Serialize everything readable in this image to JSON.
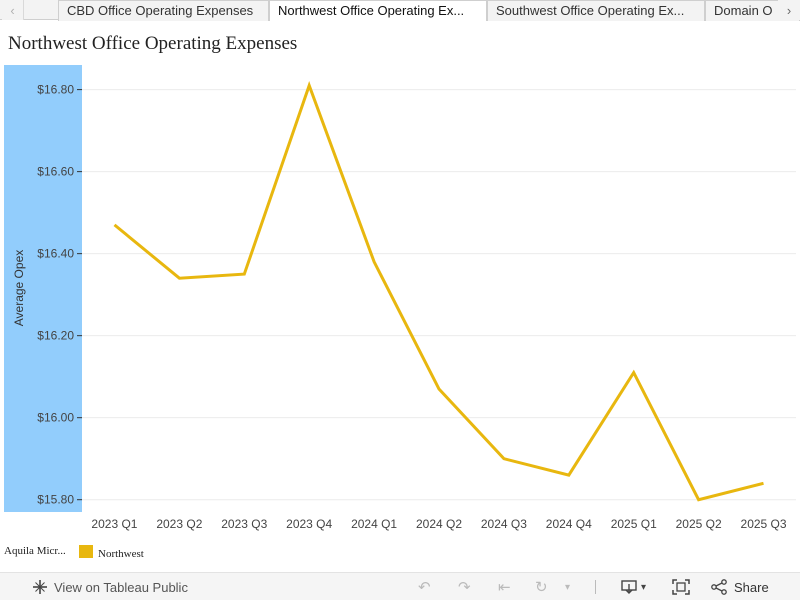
{
  "tabs": {
    "items": [
      {
        "label": "CBD Office Operating Expenses"
      },
      {
        "label": "Northwest Office Operating Ex..."
      },
      {
        "label": "Southwest Office Operating Ex..."
      },
      {
        "label": "Domain O"
      }
    ],
    "active_index": 1
  },
  "page": {
    "title": "Northwest Office Operating Expenses"
  },
  "legend": {
    "field": "Aquila Micr...",
    "items": [
      {
        "label": "Northwest",
        "color": "#e8b70f"
      }
    ]
  },
  "toolbar": {
    "view_label": "View on Tableau Public",
    "share_label": "Share"
  },
  "colors": {
    "line": "#e8b70f",
    "axis_band": "#92cdfc"
  },
  "chart_data": {
    "type": "line",
    "categories": [
      "2023 Q1",
      "2023 Q2",
      "2023 Q3",
      "2023 Q4",
      "2024 Q1",
      "2024 Q2",
      "2024 Q3",
      "2024 Q4",
      "2025 Q1",
      "2025 Q2",
      "2025 Q3"
    ],
    "series": [
      {
        "name": "Northwest",
        "values": [
          16.47,
          16.34,
          16.35,
          16.81,
          16.38,
          16.07,
          15.9,
          15.86,
          16.11,
          15.8,
          15.84
        ]
      }
    ],
    "ylabel": "Average Opex",
    "xlabel": "",
    "yticks": [
      "$15.80",
      "$16.00",
      "$16.20",
      "$16.40",
      "$16.60",
      "$16.80"
    ],
    "ytick_values": [
      15.8,
      16.0,
      16.2,
      16.4,
      16.6,
      16.8
    ],
    "ylim": [
      15.77,
      16.86
    ],
    "grid": true,
    "legend_position": "bottom-left"
  }
}
